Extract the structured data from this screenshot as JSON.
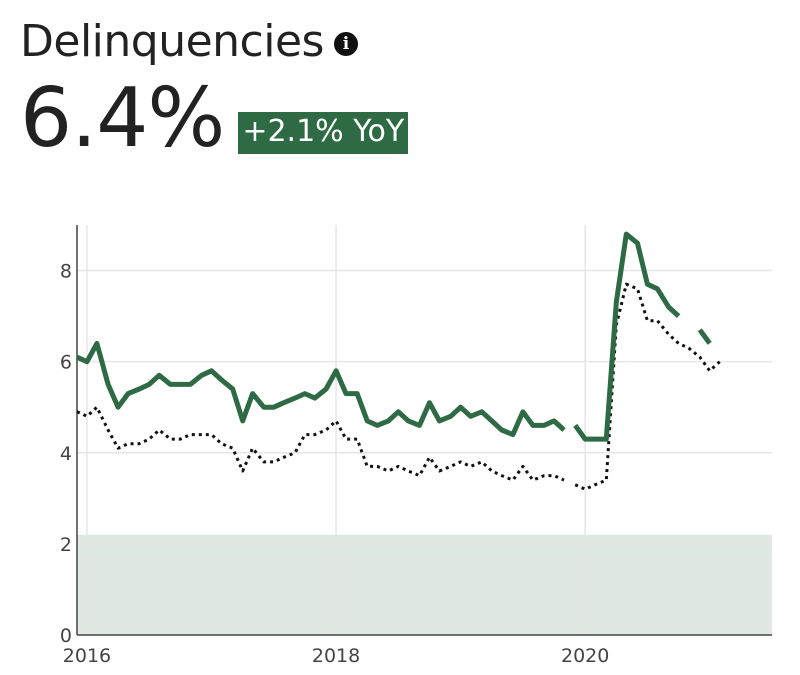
{
  "header": {
    "title": "Delinquencies",
    "info_icon": "info-icon",
    "value": "6.4%",
    "change_badge": "+2.1% YoY"
  },
  "colors": {
    "primary_series": "#2e6b45",
    "secondary_series": "#111111",
    "shaded_region": "#dfe8e3",
    "badge_bg": "#2e6b45",
    "grid": "#e6e6e6"
  },
  "chart_data": {
    "type": "line",
    "title": "",
    "xlabel": "",
    "ylabel": "",
    "xlim": [
      2015.92,
      2021.5
    ],
    "ylim": [
      0,
      9
    ],
    "x_ticks": [
      2016,
      2018,
      2020
    ],
    "x_tick_labels": [
      "2016",
      "2018",
      "2020"
    ],
    "y_ticks": [
      0,
      2,
      4,
      6,
      8
    ],
    "y_tick_labels": [
      "0",
      "2",
      "4",
      "6",
      "8"
    ],
    "grid": true,
    "shaded_band": {
      "y_from": 0,
      "y_to": 2.2
    },
    "series": [
      {
        "style": "solid",
        "points": [
          [
            2015.92,
            6.1
          ],
          [
            2016.0,
            6.0
          ],
          [
            2016.08,
            6.4
          ],
          [
            2016.17,
            5.5
          ],
          [
            2016.25,
            5.0
          ],
          [
            2016.33,
            5.3
          ],
          [
            2016.42,
            5.4
          ],
          [
            2016.5,
            5.5
          ],
          [
            2016.58,
            5.7
          ],
          [
            2016.67,
            5.5
          ],
          [
            2016.75,
            5.5
          ],
          [
            2016.83,
            5.5
          ],
          [
            2016.92,
            5.7
          ],
          [
            2017.0,
            5.8
          ],
          [
            2017.08,
            5.6
          ],
          [
            2017.17,
            5.4
          ],
          [
            2017.25,
            4.7
          ],
          [
            2017.33,
            5.3
          ],
          [
            2017.42,
            5.0
          ],
          [
            2017.5,
            5.0
          ],
          [
            2017.58,
            5.1
          ],
          [
            2017.67,
            5.2
          ],
          [
            2017.75,
            5.3
          ],
          [
            2017.83,
            5.2
          ],
          [
            2017.92,
            5.4
          ],
          [
            2018.0,
            5.8
          ],
          [
            2018.08,
            5.3
          ],
          [
            2018.17,
            5.3
          ],
          [
            2018.25,
            4.7
          ],
          [
            2018.33,
            4.6
          ],
          [
            2018.42,
            4.7
          ],
          [
            2018.5,
            4.9
          ],
          [
            2018.58,
            4.7
          ],
          [
            2018.67,
            4.6
          ],
          [
            2018.75,
            5.1
          ],
          [
            2018.83,
            4.7
          ],
          [
            2018.92,
            4.8
          ],
          [
            2019.0,
            5.0
          ],
          [
            2019.08,
            4.8
          ],
          [
            2019.17,
            4.9
          ],
          [
            2019.25,
            4.7
          ],
          [
            2019.33,
            4.5
          ],
          [
            2019.42,
            4.4
          ],
          [
            2019.5,
            4.9
          ],
          [
            2019.58,
            4.6
          ],
          [
            2019.67,
            4.6
          ],
          [
            2019.75,
            4.7
          ],
          [
            2019.83,
            4.5
          ],
          null,
          [
            2019.92,
            4.6
          ],
          [
            2020.0,
            4.3
          ],
          [
            2020.08,
            4.3
          ],
          [
            2020.17,
            4.3
          ],
          [
            2020.25,
            7.3
          ],
          [
            2020.33,
            8.8
          ],
          [
            2020.42,
            8.6
          ],
          [
            2020.5,
            7.7
          ],
          [
            2020.58,
            7.6
          ],
          [
            2020.67,
            7.2
          ],
          [
            2020.75,
            7.0
          ],
          null,
          [
            2020.92,
            6.7
          ],
          [
            2021.0,
            6.4
          ]
        ]
      },
      {
        "style": "dotted",
        "points": [
          [
            2015.92,
            4.9
          ],
          [
            2016.0,
            4.8
          ],
          [
            2016.08,
            5.0
          ],
          [
            2016.17,
            4.5
          ],
          [
            2016.25,
            4.1
          ],
          [
            2016.33,
            4.2
          ],
          [
            2016.42,
            4.2
          ],
          [
            2016.5,
            4.3
          ],
          [
            2016.58,
            4.5
          ],
          [
            2016.67,
            4.3
          ],
          [
            2016.75,
            4.3
          ],
          [
            2016.83,
            4.4
          ],
          [
            2016.92,
            4.4
          ],
          [
            2017.0,
            4.4
          ],
          [
            2017.08,
            4.2
          ],
          [
            2017.17,
            4.1
          ],
          [
            2017.25,
            3.6
          ],
          [
            2017.33,
            4.1
          ],
          [
            2017.42,
            3.8
          ],
          [
            2017.5,
            3.8
          ],
          [
            2017.58,
            3.9
          ],
          [
            2017.67,
            4.0
          ],
          [
            2017.75,
            4.4
          ],
          [
            2017.83,
            4.4
          ],
          [
            2017.92,
            4.5
          ],
          [
            2018.0,
            4.7
          ],
          [
            2018.08,
            4.3
          ],
          [
            2018.17,
            4.3
          ],
          [
            2018.25,
            3.7
          ],
          [
            2018.33,
            3.7
          ],
          [
            2018.42,
            3.6
          ],
          [
            2018.5,
            3.7
          ],
          [
            2018.58,
            3.6
          ],
          [
            2018.67,
            3.5
          ],
          [
            2018.75,
            3.9
          ],
          [
            2018.83,
            3.6
          ],
          [
            2018.92,
            3.7
          ],
          [
            2019.0,
            3.8
          ],
          [
            2019.08,
            3.7
          ],
          [
            2019.17,
            3.8
          ],
          [
            2019.25,
            3.6
          ],
          [
            2019.33,
            3.5
          ],
          [
            2019.42,
            3.4
          ],
          [
            2019.5,
            3.7
          ],
          [
            2019.58,
            3.4
          ],
          [
            2019.67,
            3.5
          ],
          [
            2019.75,
            3.5
          ],
          [
            2019.83,
            3.4
          ],
          null,
          [
            2019.92,
            3.3
          ],
          [
            2020.0,
            3.2
          ],
          [
            2020.08,
            3.3
          ],
          [
            2020.17,
            3.4
          ],
          [
            2020.25,
            6.8
          ],
          [
            2020.33,
            7.7
          ],
          [
            2020.42,
            7.6
          ],
          [
            2020.5,
            6.9
          ],
          [
            2020.58,
            6.9
          ],
          [
            2020.67,
            6.6
          ],
          [
            2020.75,
            6.4
          ],
          [
            2020.83,
            6.3
          ],
          [
            2020.92,
            6.1
          ],
          [
            2021.0,
            5.8
          ],
          [
            2021.08,
            6.0
          ]
        ]
      }
    ]
  }
}
